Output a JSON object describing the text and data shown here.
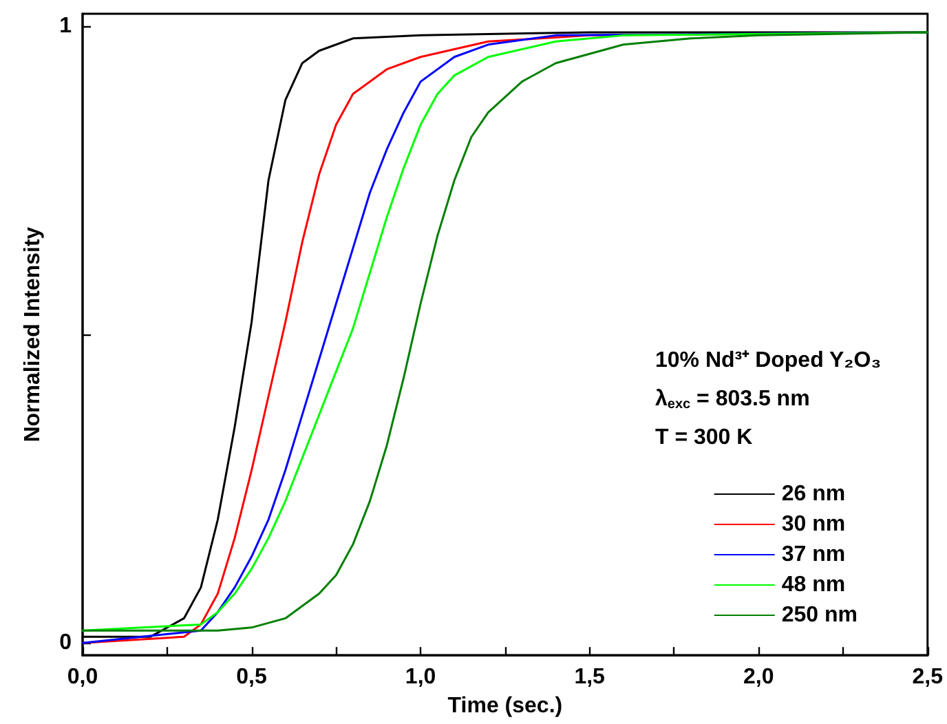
{
  "chart_data": {
    "type": "line",
    "xlabel": "Time (sec.)",
    "ylabel": "Normalized Intensity",
    "annotations": [
      "10% Nd³⁺ Doped Y₂O₃",
      "λ$_{exc}$ = 803.5 nm",
      "T = 300 K"
    ],
    "legend": "bottom right",
    "line_style": "solid",
    "xlim": [
      0,
      2.5
    ],
    "ylim": [
      -0.02,
      1.02
    ],
    "xticks": [
      {
        "value": 0,
        "label": "0,0"
      },
      {
        "value": 0.25,
        "label": null
      },
      {
        "value": 0.5,
        "label": "0,5"
      },
      {
        "value": 0.75,
        "label": null
      },
      {
        "value": 1,
        "label": "1,0"
      },
      {
        "value": 1.25,
        "label": null
      },
      {
        "value": 1.5,
        "label": "1,5"
      },
      {
        "value": 1.75,
        "label": null
      },
      {
        "value": 2,
        "label": "2,0"
      },
      {
        "value": 2.25,
        "label": null
      },
      {
        "value": 2.5,
        "label": "2,5"
      }
    ],
    "yticks": [
      0,
      {
        "value": 0.5,
        "label": null
      },
      1
    ],
    "series": [
      {
        "name": "26 nm",
        "color": "#000000",
        "x": [
          0,
          0.2,
          0.3,
          0.35,
          0.4,
          0.45,
          0.5,
          0.55,
          0.6,
          0.65,
          0.7,
          0.8,
          1.0,
          1.5,
          2.5
        ],
        "values": [
          0.01,
          0.01,
          0.04,
          0.09,
          0.2,
          0.35,
          0.52,
          0.75,
          0.88,
          0.94,
          0.96,
          0.98,
          0.985,
          0.99,
          0.99
        ]
      },
      {
        "name": "30 nm",
        "color": "#ff0000",
        "x": [
          0,
          0.3,
          0.35,
          0.4,
          0.45,
          0.5,
          0.55,
          0.6,
          0.65,
          0.7,
          0.75,
          0.8,
          0.9,
          1.0,
          1.2,
          1.5,
          2.5
        ],
        "values": [
          0.0,
          0.01,
          0.03,
          0.08,
          0.17,
          0.28,
          0.4,
          0.52,
          0.65,
          0.76,
          0.84,
          0.89,
          0.93,
          0.95,
          0.975,
          0.985,
          0.99
        ]
      },
      {
        "name": "37 nm",
        "color": "#0000ff",
        "x": [
          0,
          0.35,
          0.4,
          0.45,
          0.5,
          0.55,
          0.6,
          0.65,
          0.7,
          0.75,
          0.8,
          0.85,
          0.9,
          0.95,
          1.0,
          1.1,
          1.2,
          1.4,
          2.5
        ],
        "values": [
          0.0,
          0.02,
          0.05,
          0.09,
          0.14,
          0.2,
          0.28,
          0.37,
          0.46,
          0.55,
          0.64,
          0.73,
          0.8,
          0.86,
          0.91,
          0.95,
          0.97,
          0.985,
          0.99
        ]
      },
      {
        "name": "48 nm",
        "color": "#00ff00",
        "x": [
          0,
          0.35,
          0.4,
          0.45,
          0.5,
          0.55,
          0.6,
          0.65,
          0.7,
          0.75,
          0.8,
          0.85,
          0.9,
          0.95,
          1.0,
          1.05,
          1.1,
          1.2,
          1.4,
          1.6,
          2.5
        ],
        "values": [
          0.02,
          0.03,
          0.05,
          0.08,
          0.12,
          0.17,
          0.23,
          0.3,
          0.37,
          0.44,
          0.51,
          0.6,
          0.69,
          0.77,
          0.84,
          0.89,
          0.92,
          0.95,
          0.975,
          0.985,
          0.99
        ]
      },
      {
        "name": "250 nm",
        "color": "#007f00",
        "x": [
          0,
          0.4,
          0.5,
          0.6,
          0.65,
          0.7,
          0.75,
          0.8,
          0.85,
          0.9,
          0.95,
          1.0,
          1.05,
          1.1,
          1.15,
          1.2,
          1.3,
          1.4,
          1.6,
          1.8,
          2.0,
          2.5
        ],
        "values": [
          0.02,
          0.02,
          0.025,
          0.04,
          0.06,
          0.08,
          0.11,
          0.16,
          0.23,
          0.32,
          0.43,
          0.55,
          0.66,
          0.75,
          0.82,
          0.86,
          0.91,
          0.94,
          0.97,
          0.98,
          0.985,
          0.99
        ]
      }
    ]
  }
}
